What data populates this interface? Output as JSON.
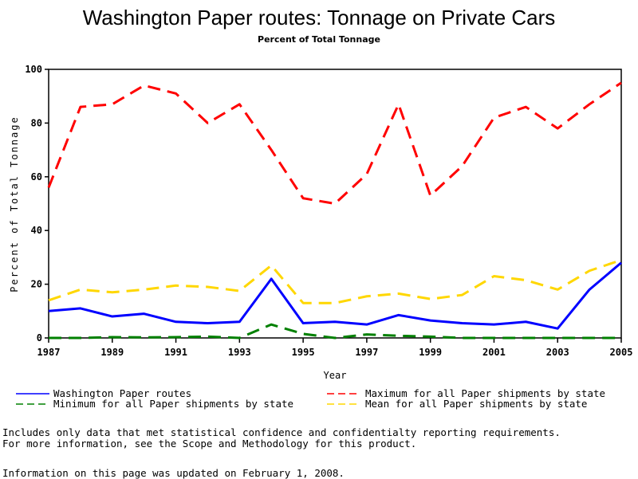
{
  "chart_data": {
    "type": "line",
    "title": "Washington Paper routes: Tonnage on Private Cars",
    "subtitle": "Percent of Total Tonnage",
    "xlabel": "Year",
    "ylabel": "Percent of Total Tonnage",
    "x": [
      1987,
      1988,
      1989,
      1990,
      1991,
      1992,
      1993,
      1994,
      1995,
      1996,
      1997,
      1998,
      1999,
      2000,
      2001,
      2002,
      2003,
      2004,
      2005
    ],
    "xlim": [
      1987,
      2005
    ],
    "ylim": [
      0,
      100
    ],
    "xticks": [
      "1987",
      "1989",
      "1991",
      "1993",
      "1995",
      "1997",
      "1999",
      "2001",
      "2003",
      "2005"
    ],
    "yticks": [
      "0",
      "20",
      "40",
      "60",
      "80",
      "100"
    ],
    "grid": false,
    "legend_position": "bottom",
    "series": [
      {
        "name": "Washington Paper routes",
        "color": "#0000ff",
        "style": "solid",
        "values": [
          10,
          11,
          8,
          9,
          6,
          5.5,
          6,
          22,
          5.5,
          6,
          5,
          8.5,
          6.5,
          5.5,
          5,
          6,
          3.5,
          18,
          28
        ]
      },
      {
        "name": "Maximum for all Paper shipments by state",
        "color": "#ff0000",
        "style": "dashed",
        "values": [
          56,
          86,
          87,
          94,
          91,
          80,
          87,
          70,
          52,
          50,
          61,
          87,
          53,
          64,
          82,
          86,
          78,
          87,
          95
        ]
      },
      {
        "name": "Minimum for all Paper shipments by state",
        "color": "#008000",
        "style": "dashed",
        "values": [
          0,
          0,
          0.3,
          0.2,
          0.3,
          0.5,
          0,
          5,
          1.5,
          0,
          1.3,
          0.8,
          0.5,
          0,
          0,
          0,
          0,
          0,
          0
        ]
      },
      {
        "name": "Mean for all Paper shipments by state",
        "color": "#ffd700",
        "style": "dashed",
        "values": [
          14,
          18,
          17,
          18,
          19.5,
          19,
          17.5,
          27,
          13,
          13,
          15.5,
          16.5,
          14.5,
          16,
          23,
          21.5,
          18,
          25,
          29
        ]
      }
    ]
  },
  "notes": {
    "line1": "Includes only data that met statistical confidence and confidentialty reporting requirements.",
    "line2": "For more information, see the Scope and Methodology for this product.",
    "updated": "Information on this page was updated on February 1, 2008."
  }
}
